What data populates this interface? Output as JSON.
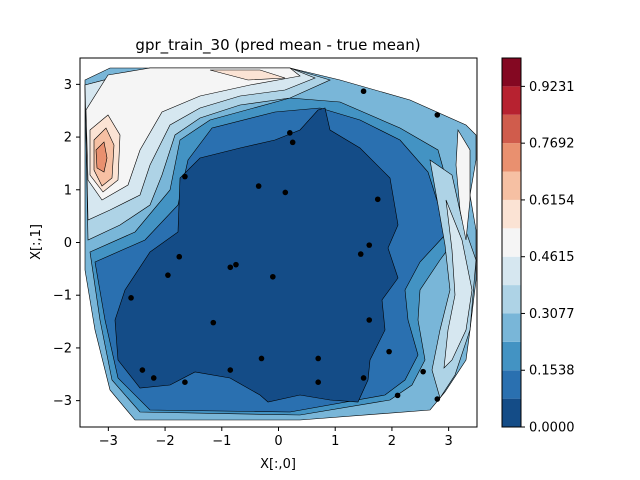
{
  "chart_data": {
    "type": "contour",
    "title": "gpr_train_30 (pred mean - true mean)",
    "xlabel": "X[:,0]",
    "ylabel": "X[:,1]",
    "xlim": [
      -3.5,
      3.5
    ],
    "ylim": [
      -3.5,
      3.5
    ],
    "xticks": [
      -3,
      -2,
      -1,
      0,
      1,
      2,
      3
    ],
    "yticks": [
      -3,
      -2,
      -1,
      0,
      1,
      2,
      3
    ],
    "colorbar": {
      "vmin": 0.0,
      "vmax": 1.0,
      "tick_values": [
        0.0,
        0.1538,
        0.3077,
        0.4615,
        0.6154,
        0.7692,
        0.9231
      ],
      "tick_labels": [
        "0.0000",
        "0.1538",
        "0.3077",
        "0.4615",
        "0.6154",
        "0.7692",
        "0.9231"
      ],
      "levels": [
        0.0,
        0.0769,
        0.1538,
        0.2308,
        0.3077,
        0.3846,
        0.4615,
        0.5385,
        0.6154,
        0.6923,
        0.7692,
        0.8462,
        0.9231,
        1.0
      ],
      "colors": [
        "#144c87",
        "#2a70b0",
        "#4393c3",
        "#79b6d8",
        "#aed3e6",
        "#d6e7f0",
        "#f5f5f5",
        "#fbe3d4",
        "#f6c0a3",
        "#e9906f",
        "#d05c4c",
        "#b72230",
        "#840822"
      ]
    },
    "training_points": [
      [
        1.5,
        2.87
      ],
      [
        2.8,
        2.42
      ],
      [
        0.2,
        2.08
      ],
      [
        0.25,
        1.9
      ],
      [
        -1.65,
        1.25
      ],
      [
        -0.35,
        1.07
      ],
      [
        0.12,
        0.95
      ],
      [
        1.75,
        0.82
      ],
      [
        1.6,
        -0.05
      ],
      [
        1.45,
        -0.22
      ],
      [
        -1.75,
        -0.27
      ],
      [
        -0.75,
        -0.42
      ],
      [
        -0.85,
        -0.47
      ],
      [
        -1.95,
        -0.62
      ],
      [
        -0.1,
        -0.65
      ],
      [
        -2.6,
        -1.05
      ],
      [
        -1.15,
        -1.52
      ],
      [
        1.6,
        -1.47
      ],
      [
        1.95,
        -2.07
      ],
      [
        -0.3,
        -2.2
      ],
      [
        0.7,
        -2.2
      ],
      [
        2.55,
        -2.45
      ],
      [
        -2.4,
        -2.42
      ],
      [
        -0.85,
        -2.42
      ],
      [
        -2.2,
        -2.57
      ],
      [
        1.5,
        -2.57
      ],
      [
        -1.65,
        -2.65
      ],
      [
        0.7,
        -2.65
      ],
      [
        2.1,
        -2.9
      ],
      [
        2.8,
        -2.97
      ]
    ]
  }
}
